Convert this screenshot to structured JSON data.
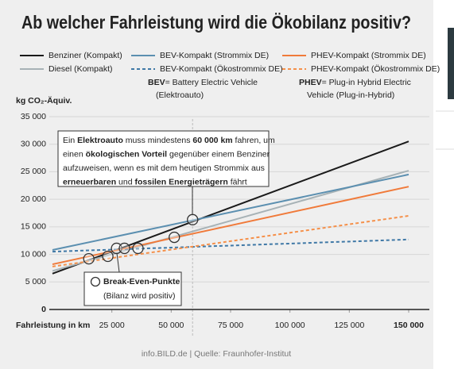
{
  "chart_data": {
    "type": "line",
    "title": "Ab welcher Fahrleistung wird die Ökobilanz positiv?",
    "y_label": "kg CO₂-Äquiv.",
    "x_label": "Fahrleistung in km",
    "source": "info.BILD.de | Quelle: Fraunhofer-Institut",
    "xlim": [
      0,
      150000
    ],
    "ylim": [
      0,
      35000
    ],
    "xticks": [
      {
        "value": 25000,
        "label": "25 000"
      },
      {
        "value": 50000,
        "label": "50 000"
      },
      {
        "value": 75000,
        "label": "75 000"
      },
      {
        "value": 100000,
        "label": "100 000"
      },
      {
        "value": 125000,
        "label": "125 000"
      },
      {
        "value": 150000,
        "label": "150 000"
      }
    ],
    "yticks": [
      0,
      {
        "value": 5000,
        "label": "5 000"
      },
      {
        "value": 10000,
        "label": "10 000"
      },
      {
        "value": 15000,
        "label": "15 000"
      },
      {
        "value": 20000,
        "label": "20 000"
      },
      {
        "value": 25000,
        "label": "25 000"
      },
      {
        "value": 30000,
        "label": "30 000"
      },
      {
        "value": 35000,
        "label": "35 000"
      }
    ],
    "grid": true,
    "series": [
      {
        "name": "Benziner (Kompakt)",
        "color": "#1a1a1a",
        "dashed": false,
        "x": [
          0,
          150000
        ],
        "values": [
          6500,
          30500
        ]
      },
      {
        "name": "Diesel (Kompakt)",
        "color": "#a7b2b6",
        "dashed": false,
        "x": [
          0,
          150000
        ],
        "values": [
          7000,
          25200
        ]
      },
      {
        "name": "BEV-Kompakt (Strommix DE)",
        "color": "#5b8fb0",
        "dashed": false,
        "x": [
          0,
          150000
        ],
        "values": [
          10800,
          24500
        ]
      },
      {
        "name": "BEV-Kompakt (Ökostrommix DE)",
        "color": "#3f78a6",
        "dashed": true,
        "x": [
          0,
          150000
        ],
        "values": [
          10500,
          12700
        ]
      },
      {
        "name": "PHEV-Kompakt (Strommix DE)",
        "color": "#f07a3a",
        "dashed": false,
        "x": [
          0,
          150000
        ],
        "values": [
          8200,
          22300
        ]
      },
      {
        "name": "PHEV-Kompakt (Ökostrommix DE)",
        "color": "#f5904a",
        "dashed": true,
        "x": [
          0,
          150000
        ],
        "values": [
          7800,
          17000
        ]
      },
      {
        "name": "Break-Even-Punkte",
        "color": "#333333",
        "marker": "circle",
        "x": [
          15300,
          23300,
          27000,
          30300,
          36000,
          51300,
          59000
        ],
        "values": [
          9200,
          9650,
          11100,
          11100,
          11100,
          13100,
          16300
        ]
      }
    ],
    "marker_note": "(Bilanz wird positiv)",
    "legend_notes": [
      {
        "term": "BEV",
        "lines": [
          "= Battery Electric Vehicle",
          "(Elektroauto)"
        ]
      },
      {
        "term": "PHEV",
        "lines": [
          "= Plug-in Hybrid Electric",
          "Vehicle (Plug-in-Hybrid)"
        ]
      }
    ],
    "annotation": [
      [
        {
          "text": "Ein "
        },
        {
          "text": "Elektroauto",
          "bold": true
        },
        {
          "text": " muss mindestens "
        },
        {
          "text": "60 000 km",
          "bold": true
        },
        {
          "text": " fahren, um"
        }
      ],
      [
        {
          "text": "einen "
        },
        {
          "text": "ökologischen Vorteil",
          "bold": true
        },
        {
          "text": " gegenüber einem Benziner"
        }
      ],
      [
        {
          "text": "aufzuweisen, wenn es mit dem heutigen Strommix aus"
        }
      ],
      [
        {
          "text": "erneuerbaren",
          "bold": true
        },
        {
          "text": " und "
        },
        {
          "text": "fossilen Energieträgern",
          "bold": true
        },
        {
          "text": " fährt"
        }
      ]
    ]
  }
}
